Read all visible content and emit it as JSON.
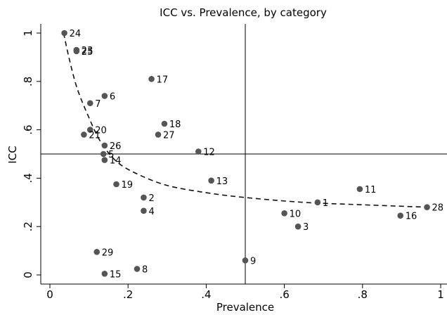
{
  "chart_data": {
    "type": "scatter",
    "title": "ICC vs. Prevalence, by category",
    "xlabel": "Prevalence",
    "ylabel": "ICC",
    "xlim": [
      0,
      1
    ],
    "ylim": [
      0,
      1
    ],
    "xticks": [
      0,
      0.2,
      0.4,
      0.6,
      0.8,
      1
    ],
    "yticks": [
      0,
      0.2,
      0.4,
      0.6,
      0.8,
      1
    ],
    "xtick_labels": [
      "0",
      ".2",
      ".4",
      ".6",
      ".8",
      "1"
    ],
    "ytick_labels": [
      "0",
      ".2",
      ".4",
      ".6",
      ".8",
      "1"
    ],
    "reference_lines": {
      "x": 0.5,
      "y": 0.5
    },
    "point_color": "#555555",
    "curve_style": "dashed",
    "curve": [
      {
        "x": 0.035,
        "y": 1.0
      },
      {
        "x": 0.05,
        "y": 0.89
      },
      {
        "x": 0.07,
        "y": 0.77
      },
      {
        "x": 0.1,
        "y": 0.65
      },
      {
        "x": 0.13,
        "y": 0.55
      },
      {
        "x": 0.17,
        "y": 0.47
      },
      {
        "x": 0.22,
        "y": 0.42
      },
      {
        "x": 0.3,
        "y": 0.37
      },
      {
        "x": 0.4,
        "y": 0.34
      },
      {
        "x": 0.5,
        "y": 0.32
      },
      {
        "x": 0.65,
        "y": 0.3
      },
      {
        "x": 0.8,
        "y": 0.29
      },
      {
        "x": 0.965,
        "y": 0.28
      }
    ],
    "points": [
      {
        "label": "1",
        "x": 0.685,
        "y": 0.3
      },
      {
        "label": "2",
        "x": 0.24,
        "y": 0.32
      },
      {
        "label": "3",
        "x": 0.635,
        "y": 0.2
      },
      {
        "label": "4",
        "x": 0.24,
        "y": 0.265
      },
      {
        "label": "5",
        "x": 0.137,
        "y": 0.5
      },
      {
        "label": "6",
        "x": 0.14,
        "y": 0.74
      },
      {
        "label": "7",
        "x": 0.103,
        "y": 0.71
      },
      {
        "label": "8",
        "x": 0.223,
        "y": 0.025
      },
      {
        "label": "9",
        "x": 0.5,
        "y": 0.06
      },
      {
        "label": "10",
        "x": 0.6,
        "y": 0.255
      },
      {
        "label": "11",
        "x": 0.793,
        "y": 0.355
      },
      {
        "label": "12",
        "x": 0.38,
        "y": 0.51
      },
      {
        "label": "13",
        "x": 0.413,
        "y": 0.39
      },
      {
        "label": "14",
        "x": 0.14,
        "y": 0.475
      },
      {
        "label": "15",
        "x": 0.14,
        "y": 0.005
      },
      {
        "label": "16",
        "x": 0.897,
        "y": 0.245
      },
      {
        "label": "17",
        "x": 0.26,
        "y": 0.81
      },
      {
        "label": "18",
        "x": 0.293,
        "y": 0.625
      },
      {
        "label": "19",
        "x": 0.17,
        "y": 0.375
      },
      {
        "label": "20",
        "x": 0.103,
        "y": 0.6
      },
      {
        "label": "21",
        "x": 0.087,
        "y": 0.58
      },
      {
        "label": "23",
        "x": 0.068,
        "y": 0.93
      },
      {
        "label": "24",
        "x": 0.037,
        "y": 1.0
      },
      {
        "label": "25",
        "x": 0.068,
        "y": 0.925
      },
      {
        "label": "26",
        "x": 0.14,
        "y": 0.535
      },
      {
        "label": "27",
        "x": 0.277,
        "y": 0.58
      },
      {
        "label": "28",
        "x": 0.965,
        "y": 0.28
      },
      {
        "label": "29",
        "x": 0.12,
        "y": 0.095
      }
    ]
  }
}
